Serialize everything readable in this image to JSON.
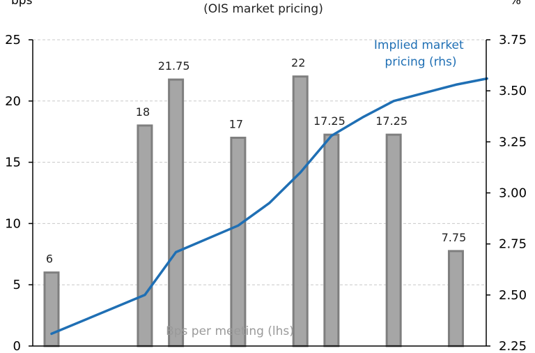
{
  "chart_data": {
    "type": "bar+line",
    "subtitle": "(OIS market pricing)",
    "y_left_unit": "bps",
    "y_right_unit": "%",
    "y_left": {
      "min": 0,
      "max": 25,
      "ticks": [
        "0",
        "5",
        "10",
        "15",
        "20",
        "25"
      ]
    },
    "y_right": {
      "min": 2.25,
      "max": 3.75,
      "ticks": [
        "2.25",
        "2.50",
        "2.75",
        "3.00",
        "3.25",
        "3.50",
        "3.75"
      ]
    },
    "grid": "horizontal dashed",
    "x_positions": [
      0,
      1,
      2,
      3,
      4,
      5,
      6,
      7
    ],
    "bar_series": {
      "name": "Bps per meeting (lhs)",
      "color": "#a6a6a6",
      "edge_color": "#7f7f7f",
      "bars": [
        {
          "x": 0.0,
          "value": 6,
          "label": "6"
        },
        {
          "x": 1.5,
          "value": 18,
          "label": "18"
        },
        {
          "x": 2.0,
          "value": 21.75,
          "label": "21.75"
        },
        {
          "x": 3.0,
          "value": 17,
          "label": "17"
        },
        {
          "x": 4.0,
          "value": 22,
          "label": "22"
        },
        {
          "x": 4.5,
          "value": 17.25,
          "label": "17.25"
        },
        {
          "x": 5.5,
          "value": 17.25,
          "label": "17.25"
        },
        {
          "x": 6.5,
          "value": 7.75,
          "label": "7.75"
        }
      ]
    },
    "line_series": {
      "name": "Implied market pricing (rhs)",
      "name_lines": [
        "Implied market",
        "pricing (rhs)"
      ],
      "color": "#1f6fb4",
      "points": [
        {
          "x": 0.0,
          "y": 2.31
        },
        {
          "x": 1.5,
          "y": 2.5
        },
        {
          "x": 2.0,
          "y": 2.71
        },
        {
          "x": 3.0,
          "y": 2.84
        },
        {
          "x": 3.5,
          "y": 2.95
        },
        {
          "x": 4.0,
          "y": 3.1
        },
        {
          "x": 4.5,
          "y": 3.28
        },
        {
          "x": 5.0,
          "y": 3.37
        },
        {
          "x": 5.5,
          "y": 3.45
        },
        {
          "x": 6.0,
          "y": 3.49
        },
        {
          "x": 6.5,
          "y": 3.53
        },
        {
          "x": 7.0,
          "y": 3.56
        }
      ]
    }
  }
}
